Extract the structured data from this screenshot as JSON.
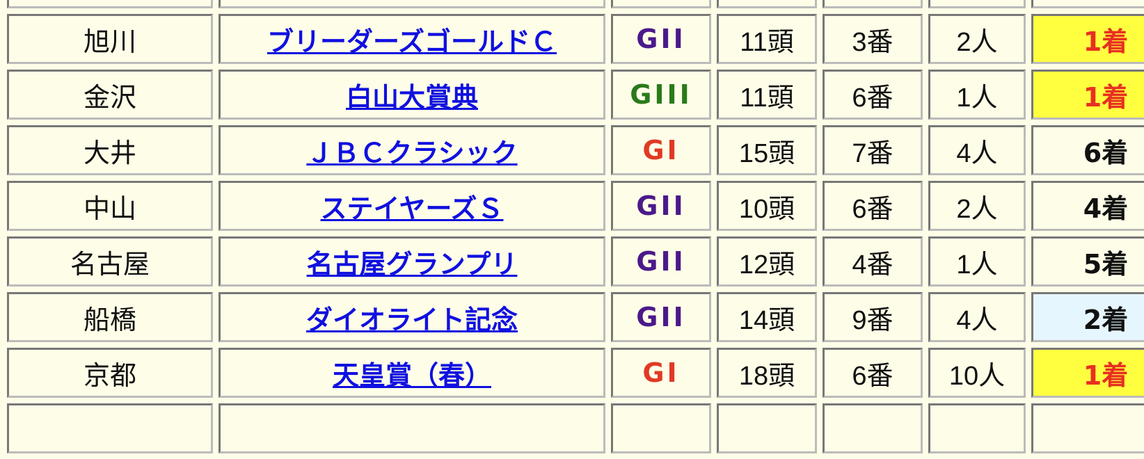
{
  "colors": {
    "win_bg": "#ffff40",
    "win_text": "#e83020",
    "second_bg": "#e6f6ff",
    "GI": "#e03a24",
    "GII": "#4b1a8a",
    "GIII": "#2a7a1a"
  },
  "rows": [
    {
      "venue": "旭川",
      "race": "ブリーダーズゴールドＣ",
      "grade": "GII",
      "runners": "11頭",
      "gate": "3番",
      "popularity": "2人",
      "place": "1着",
      "place_style": "win"
    },
    {
      "venue": "金沢",
      "race": "白山大賞典",
      "grade": "GIII",
      "runners": "11頭",
      "gate": "6番",
      "popularity": "1人",
      "place": "1着",
      "place_style": "win"
    },
    {
      "venue": "大井",
      "race": "ＪＢＣクラシック",
      "grade": "GI",
      "runners": "15頭",
      "gate": "7番",
      "popularity": "4人",
      "place": "6着",
      "place_style": "normal"
    },
    {
      "venue": "中山",
      "race": "ステイヤーズＳ",
      "grade": "GII",
      "runners": "10頭",
      "gate": "6番",
      "popularity": "2人",
      "place": "4着",
      "place_style": "normal"
    },
    {
      "venue": "名古屋",
      "race": "名古屋グランプリ",
      "grade": "GII",
      "runners": "12頭",
      "gate": "4番",
      "popularity": "1人",
      "place": "5着",
      "place_style": "normal"
    },
    {
      "venue": "船橋",
      "race": "ダイオライト記念",
      "grade": "GII",
      "runners": "14頭",
      "gate": "9番",
      "popularity": "4人",
      "place": "2着",
      "place_style": "second"
    },
    {
      "venue": "京都",
      "race": "天皇賞（春）",
      "grade": "GI",
      "runners": "18頭",
      "gate": "6番",
      "popularity": "10人",
      "place": "1着",
      "place_style": "win"
    }
  ]
}
